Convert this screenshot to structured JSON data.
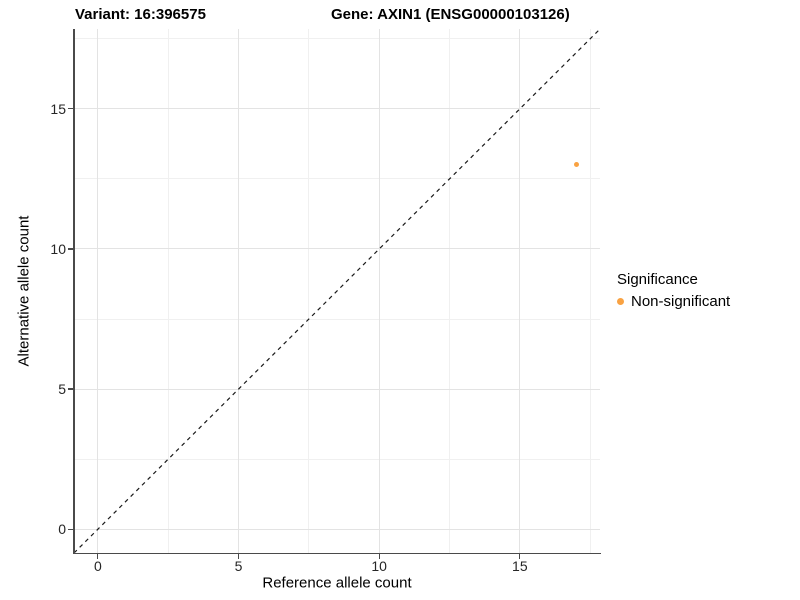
{
  "figure": {
    "variant_title": "Variant: 16:396575",
    "gene_title": "Gene: AXIN1 (ENSG00000103126)"
  },
  "axes": {
    "x": {
      "label": "Reference allele count"
    },
    "y": {
      "label": "Alternative allele count"
    }
  },
  "legend": {
    "title": "Significance",
    "items": [
      {
        "label": "Non-significant",
        "color": "#F9A242"
      }
    ]
  },
  "chart_data": {
    "type": "scatter",
    "titles": [
      "Variant: 16:396575",
      "Gene: AXIN1 (ENSG00000103126)"
    ],
    "xlabel": "Reference allele count",
    "ylabel": "Alternative allele count",
    "xlim": [
      -0.85,
      17.85
    ],
    "ylim": [
      -0.85,
      17.85
    ],
    "x_ticks": [
      0,
      5,
      10,
      15
    ],
    "y_ticks": [
      0,
      5,
      10,
      15
    ],
    "x_minor_ticks": [
      2.5,
      7.5,
      12.5,
      17.5
    ],
    "y_minor_ticks": [
      2.5,
      7.5,
      12.5,
      17.5
    ],
    "grid": true,
    "legend_position": "right",
    "series": [
      {
        "name": "Non-significant",
        "color": "#F9A242",
        "points": [
          {
            "x": 17,
            "y": 13
          }
        ]
      }
    ],
    "reference_line": {
      "equation": "y = x",
      "style": "dashed",
      "color": "#1a1a1a",
      "from": [
        -0.85,
        -0.85
      ],
      "to": [
        17.85,
        17.85
      ]
    }
  }
}
